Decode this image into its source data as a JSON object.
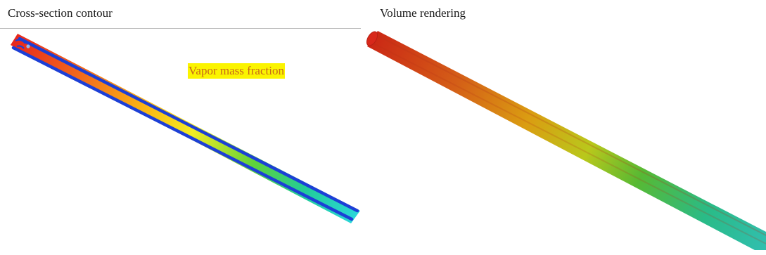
{
  "figure": {
    "left_panel": {
      "title": "Cross-section contour",
      "annotation": "Vapor mass fraction"
    },
    "right_panel": {
      "title": "Volume rendering"
    },
    "colors": {
      "annotation_background": "#fbf400",
      "annotation_text": "#c86a18",
      "colormap": [
        "#e8281c",
        "#f26c1c",
        "#fbb514",
        "#f3ec22",
        "#5fd23a",
        "#22cc98",
        "#2ad6d8"
      ],
      "tube_wall": "#1c3fd6"
    }
  }
}
